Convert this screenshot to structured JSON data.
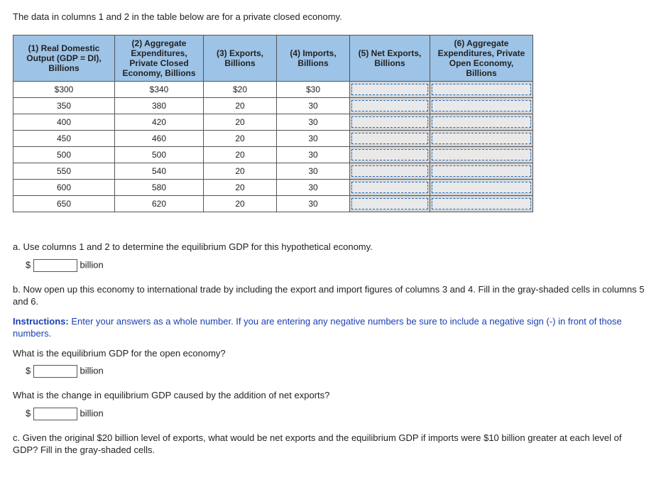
{
  "intro": "The data in columns 1 and 2 in the table below are for a private closed economy.",
  "headers": {
    "c1": "(1) Real Domestic Output (GDP = DI), Billions",
    "c2": "(2) Aggregate Expenditures, Private Closed Economy, Billions",
    "c3": "(3) Exports, Billions",
    "c4": "(4) Imports, Billions",
    "c5": "(5) Net Exports, Billions",
    "c6": "(6) Aggregate Expenditures, Private Open Economy, Billions"
  },
  "rows": [
    {
      "c1": "$300",
      "c2": "$340",
      "c3": "$20",
      "c4": "$30"
    },
    {
      "c1": "350",
      "c2": "380",
      "c3": "20",
      "c4": "30"
    },
    {
      "c1": "400",
      "c2": "420",
      "c3": "20",
      "c4": "30"
    },
    {
      "c1": "450",
      "c2": "460",
      "c3": "20",
      "c4": "30"
    },
    {
      "c1": "500",
      "c2": "500",
      "c3": "20",
      "c4": "30"
    },
    {
      "c1": "550",
      "c2": "540",
      "c3": "20",
      "c4": "30"
    },
    {
      "c1": "600",
      "c2": "580",
      "c3": "20",
      "c4": "30"
    },
    {
      "c1": "650",
      "c2": "620",
      "c3": "20",
      "c4": "30"
    }
  ],
  "qa": {
    "a_text": "a. Use columns 1 and 2 to determine the equilibrium GDP for this hypothetical economy.",
    "billion": "billion",
    "dollar": "$",
    "b_text": "b. Now open up this economy to international trade by including the export and import figures of columns 3 and 4. Fill in the gray-shaded cells in columns 5 and 6.",
    "instructions_lead": "Instructions:",
    "instructions_body": " Enter your answers as a whole number. If you are entering any negative numbers be sure to include a negative sign (-) in front of those numbers.",
    "b_q1": "What is the equilibrium GDP for the open economy?",
    "b_q2": "What is the change in equilibrium GDP caused by the addition of net exports?",
    "c_text": "c. Given the original $20 billion level of exports, what would be net exports and the equilibrium GDP if imports were $10 billion greater at each level of GDP? Fill in the gray-shaded cells."
  }
}
